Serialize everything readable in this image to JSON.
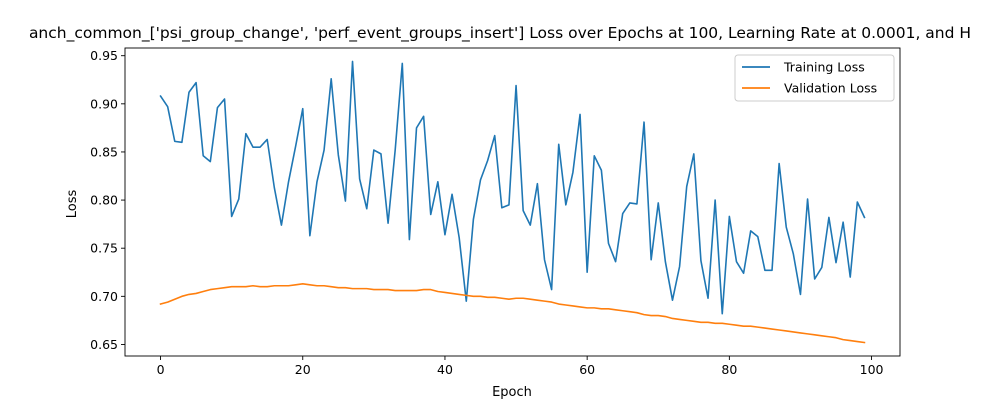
{
  "chart_data": {
    "type": "line",
    "title": "anch_common_['psi_group_change', 'perf_event_groups_insert'] Loss over Epochs at 100, Learning Rate at 0.0001, and H",
    "xlabel": "Epoch",
    "ylabel": "Loss",
    "xlim": [
      -5,
      104
    ],
    "ylim": [
      0.638,
      0.958
    ],
    "xticks": [
      0,
      20,
      40,
      60,
      80,
      100
    ],
    "yticks": [
      0.65,
      0.7,
      0.75,
      0.8,
      0.85,
      0.9,
      0.95
    ],
    "ytick_labels": [
      "0.65",
      "0.70",
      "0.75",
      "0.80",
      "0.85",
      "0.90",
      "0.95"
    ],
    "legend_position": "upper right",
    "grid": false,
    "series": [
      {
        "name": "Training Loss",
        "color": "#1f77b4",
        "values": [
          0.908,
          0.897,
          0.861,
          0.86,
          0.912,
          0.922,
          0.846,
          0.84,
          0.896,
          0.905,
          0.783,
          0.801,
          0.869,
          0.855,
          0.855,
          0.863,
          0.813,
          0.774,
          0.819,
          0.856,
          0.895,
          0.763,
          0.819,
          0.852,
          0.926,
          0.847,
          0.799,
          0.944,
          0.822,
          0.791,
          0.852,
          0.848,
          0.776,
          0.852,
          0.942,
          0.759,
          0.875,
          0.887,
          0.785,
          0.819,
          0.764,
          0.806,
          0.761,
          0.695,
          0.78,
          0.821,
          0.841,
          0.867,
          0.792,
          0.795,
          0.919,
          0.789,
          0.774,
          0.817,
          0.738,
          0.707,
          0.858,
          0.795,
          0.829,
          0.889,
          0.725,
          0.846,
          0.831,
          0.755,
          0.736,
          0.786,
          0.797,
          0.796,
          0.881,
          0.738,
          0.797,
          0.736,
          0.696,
          0.731,
          0.814,
          0.848,
          0.737,
          0.698,
          0.8,
          0.682,
          0.783,
          0.736,
          0.724,
          0.768,
          0.762,
          0.727,
          0.727,
          0.838,
          0.772,
          0.744,
          0.702,
          0.801,
          0.718,
          0.73,
          0.782,
          0.735,
          0.777,
          0.72,
          0.798,
          0.782
        ]
      },
      {
        "name": "Validation Loss",
        "color": "#ff7f0e",
        "values": [
          0.692,
          0.694,
          0.697,
          0.7,
          0.702,
          0.703,
          0.705,
          0.707,
          0.708,
          0.709,
          0.71,
          0.71,
          0.71,
          0.711,
          0.71,
          0.71,
          0.711,
          0.711,
          0.711,
          0.712,
          0.713,
          0.712,
          0.711,
          0.711,
          0.71,
          0.709,
          0.709,
          0.708,
          0.708,
          0.708,
          0.707,
          0.707,
          0.707,
          0.706,
          0.706,
          0.706,
          0.706,
          0.707,
          0.707,
          0.705,
          0.704,
          0.703,
          0.702,
          0.701,
          0.7,
          0.7,
          0.699,
          0.699,
          0.698,
          0.697,
          0.698,
          0.698,
          0.697,
          0.696,
          0.695,
          0.694,
          0.692,
          0.691,
          0.69,
          0.689,
          0.688,
          0.688,
          0.687,
          0.687,
          0.686,
          0.685,
          0.684,
          0.683,
          0.681,
          0.68,
          0.68,
          0.679,
          0.677,
          0.676,
          0.675,
          0.674,
          0.673,
          0.673,
          0.672,
          0.672,
          0.671,
          0.67,
          0.669,
          0.669,
          0.668,
          0.667,
          0.666,
          0.665,
          0.664,
          0.663,
          0.662,
          0.661,
          0.66,
          0.659,
          0.658,
          0.657,
          0.655,
          0.654,
          0.653,
          0.652
        ]
      }
    ]
  }
}
